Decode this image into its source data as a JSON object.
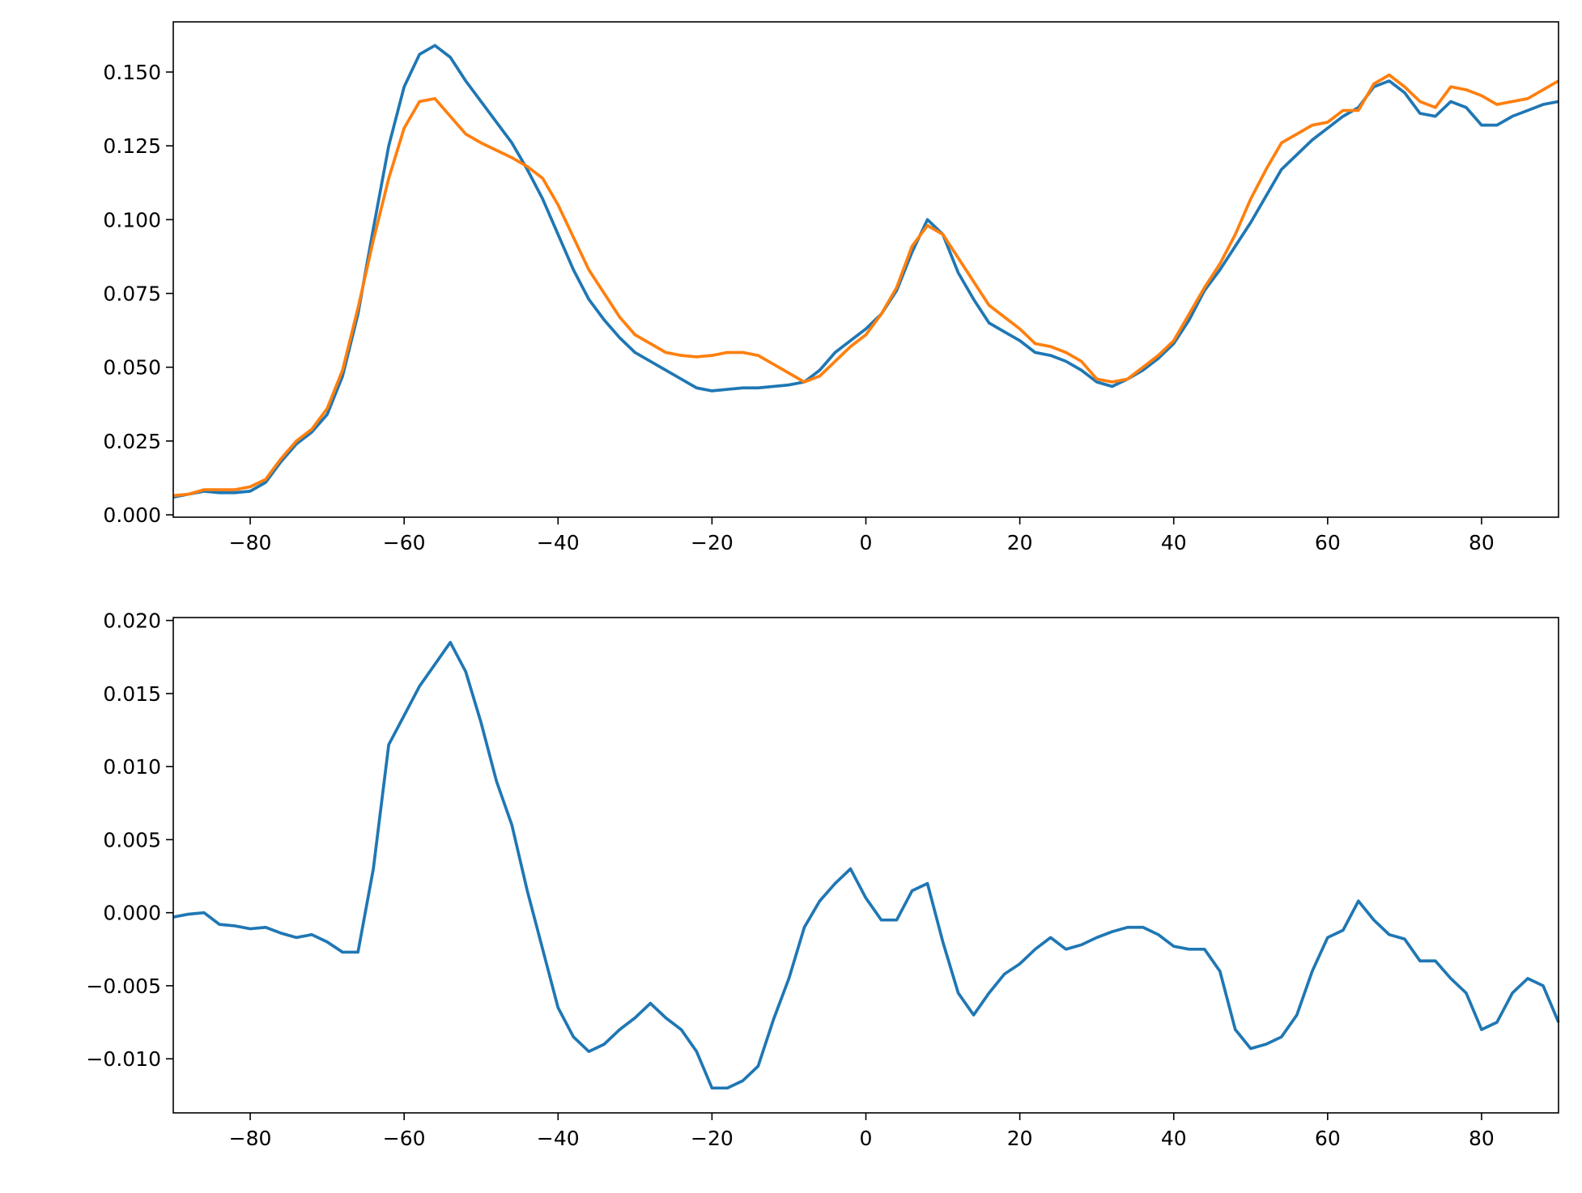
{
  "chart_data": [
    {
      "type": "line",
      "x": [
        -90,
        -88,
        -86,
        -84,
        -82,
        -80,
        -78,
        -76,
        -74,
        -72,
        -70,
        -68,
        -66,
        -64,
        -62,
        -60,
        -58,
        -56,
        -54,
        -52,
        -50,
        -48,
        -46,
        -44,
        -42,
        -40,
        -38,
        -36,
        -34,
        -32,
        -30,
        -28,
        -26,
        -24,
        -22,
        -20,
        -18,
        -16,
        -14,
        -12,
        -10,
        -8,
        -6,
        -4,
        -2,
        0,
        2,
        4,
        6,
        8,
        10,
        12,
        14,
        16,
        18,
        20,
        22,
        24,
        26,
        28,
        30,
        32,
        34,
        36,
        38,
        40,
        42,
        44,
        46,
        48,
        50,
        52,
        54,
        56,
        58,
        60,
        62,
        64,
        66,
        68,
        70,
        72,
        74,
        76,
        78,
        80,
        82,
        84,
        86,
        88,
        90
      ],
      "series": [
        {
          "color": "#1f77b4",
          "values": [
            0.006,
            0.007,
            0.008,
            0.0075,
            0.0075,
            0.008,
            0.011,
            0.018,
            0.024,
            0.028,
            0.034,
            0.047,
            0.068,
            0.097,
            0.125,
            0.145,
            0.156,
            0.159,
            0.155,
            0.147,
            0.14,
            0.133,
            0.126,
            0.117,
            0.107,
            0.095,
            0.083,
            0.073,
            0.066,
            0.06,
            0.055,
            0.052,
            0.049,
            0.046,
            0.043,
            0.042,
            0.0425,
            0.043,
            0.043,
            0.0435,
            0.044,
            0.045,
            0.049,
            0.055,
            0.059,
            0.063,
            0.068,
            0.076,
            0.089,
            0.1,
            0.095,
            0.082,
            0.073,
            0.065,
            0.062,
            0.059,
            0.055,
            0.054,
            0.052,
            0.049,
            0.045,
            0.0435,
            0.046,
            0.049,
            0.053,
            0.058,
            0.066,
            0.076,
            0.083,
            0.091,
            0.099,
            0.108,
            0.117,
            0.122,
            0.127,
            0.131,
            0.135,
            0.138,
            0.145,
            0.147,
            0.143,
            0.136,
            0.135,
            0.14,
            0.138,
            0.132,
            0.132,
            0.135,
            0.137,
            0.139,
            0.14
          ]
        },
        {
          "color": "#ff7f0e",
          "values": [
            0.0065,
            0.007,
            0.0085,
            0.0085,
            0.0085,
            0.0095,
            0.012,
            0.019,
            0.025,
            0.029,
            0.036,
            0.049,
            0.07,
            0.093,
            0.114,
            0.131,
            0.14,
            0.141,
            0.135,
            0.129,
            0.126,
            0.1235,
            0.121,
            0.118,
            0.114,
            0.105,
            0.094,
            0.083,
            0.075,
            0.067,
            0.061,
            0.058,
            0.055,
            0.054,
            0.0535,
            0.054,
            0.055,
            0.055,
            0.054,
            0.051,
            0.048,
            0.045,
            0.047,
            0.052,
            0.057,
            0.061,
            0.068,
            0.077,
            0.091,
            0.098,
            0.095,
            0.087,
            0.079,
            0.071,
            0.067,
            0.063,
            0.058,
            0.057,
            0.055,
            0.052,
            0.046,
            0.045,
            0.046,
            0.05,
            0.054,
            0.059,
            0.068,
            0.077,
            0.085,
            0.095,
            0.107,
            0.117,
            0.126,
            0.129,
            0.132,
            0.133,
            0.137,
            0.137,
            0.146,
            0.149,
            0.145,
            0.14,
            0.138,
            0.145,
            0.144,
            0.142,
            0.139,
            0.14,
            0.141,
            0.144,
            0.147
          ]
        }
      ],
      "xlim": [
        -90,
        90
      ],
      "xticks": [
        {
          "value": -80,
          "label": "−80"
        },
        {
          "value": -60,
          "label": "−60"
        },
        {
          "value": -40,
          "label": "−40"
        },
        {
          "value": -20,
          "label": "−20"
        },
        0,
        20,
        40,
        60,
        80
      ],
      "ylim": [
        -0.0008,
        0.167
      ],
      "yticks": [
        {
          "value": 0,
          "label": "0.000"
        },
        0.025,
        {
          "value": 0.05,
          "label": "0.050"
        },
        0.075,
        {
          "value": 0.1,
          "label": "0.100"
        },
        0.125,
        {
          "value": 0.15,
          "label": "0.150"
        }
      ]
    },
    {
      "type": "line",
      "x": [
        -90,
        -88,
        -86,
        -84,
        -82,
        -80,
        -78,
        -76,
        -74,
        -72,
        -70,
        -68,
        -66,
        -64,
        -62,
        -60,
        -58,
        -56,
        -54,
        -52,
        -50,
        -48,
        -46,
        -44,
        -42,
        -40,
        -38,
        -36,
        -34,
        -32,
        -30,
        -28,
        -26,
        -24,
        -22,
        -20,
        -18,
        -16,
        -14,
        -12,
        -10,
        -8,
        -6,
        -4,
        -2,
        0,
        2,
        4,
        6,
        8,
        10,
        12,
        14,
        16,
        18,
        20,
        22,
        24,
        26,
        28,
        30,
        32,
        34,
        36,
        38,
        40,
        42,
        44,
        46,
        48,
        50,
        52,
        54,
        56,
        58,
        60,
        62,
        64,
        66,
        68,
        70,
        72,
        74,
        76,
        78,
        80,
        82,
        84,
        86,
        88,
        90
      ],
      "series": [
        {
          "color": "#1f77b4",
          "values": [
            -0.0003,
            -0.0001,
            0,
            -0.0008,
            -0.0009,
            -0.0011,
            -0.001,
            -0.0014,
            -0.0017,
            -0.0015,
            -0.002,
            -0.0027,
            -0.0027,
            0.003,
            0.0115,
            0.0135,
            0.0155,
            0.017,
            0.0185,
            0.0165,
            0.013,
            0.009,
            0.006,
            0.0015,
            -0.0025,
            -0.0065,
            -0.0085,
            -0.0095,
            -0.009,
            -0.008,
            -0.0072,
            -0.0062,
            -0.0072,
            -0.008,
            -0.0095,
            -0.012,
            -0.012,
            -0.0115,
            -0.0105,
            -0.0073,
            -0.0045,
            -0.001,
            0.0008,
            0.002,
            0.003,
            0.001,
            -0.0005,
            -0.0005,
            0.0015,
            0.002,
            -0.002,
            -0.0055,
            -0.007,
            -0.0055,
            -0.0042,
            -0.0035,
            -0.0025,
            -0.0017,
            -0.0025,
            -0.0022,
            -0.0017,
            -0.0013,
            -0.001,
            -0.001,
            -0.0015,
            -0.0023,
            -0.0025,
            -0.0025,
            -0.004,
            -0.008,
            -0.0093,
            -0.009,
            -0.0085,
            -0.007,
            -0.004,
            -0.0017,
            -0.0012,
            0.0008,
            -0.0005,
            -0.0015,
            -0.0018,
            -0.0033,
            -0.0033,
            -0.0045,
            -0.0055,
            -0.008,
            -0.0075,
            -0.0055,
            -0.0045,
            -0.005,
            -0.0075
          ]
        }
      ],
      "xlim": [
        -90,
        90
      ],
      "xticks": [
        {
          "value": -80,
          "label": "−80"
        },
        {
          "value": -60,
          "label": "−60"
        },
        {
          "value": -40,
          "label": "−40"
        },
        {
          "value": -20,
          "label": "−20"
        },
        0,
        20,
        40,
        60,
        80
      ],
      "ylim": [
        -0.0137,
        0.0202
      ],
      "yticks": [
        {
          "value": -0.01,
          "label": "−0.010"
        },
        {
          "value": -0.005,
          "label": "−0.005"
        },
        {
          "value": 0,
          "label": "0.000"
        },
        0.005,
        {
          "value": 0.01,
          "label": "0.010"
        },
        0.015,
        {
          "value": 0.02,
          "label": "0.020"
        }
      ]
    }
  ]
}
